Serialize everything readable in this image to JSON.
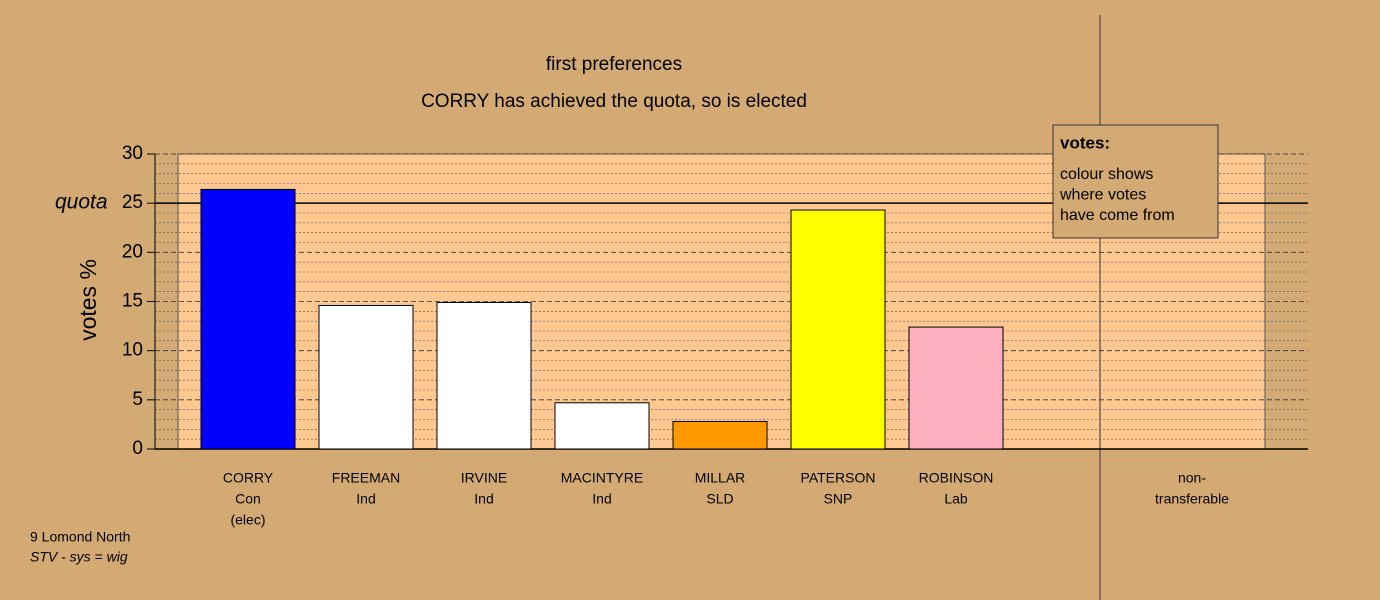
{
  "chart_data": {
    "type": "bar",
    "title": "first preferences",
    "subtitle": "CORRY has achieved the quota, so is elected",
    "y_label": "votes %",
    "categories": [
      [
        "CORRY",
        "Con",
        "(elec)"
      ],
      [
        "FREEMAN",
        "Ind"
      ],
      [
        "IRVINE",
        "Ind"
      ],
      [
        "MACINTYRE",
        "Ind"
      ],
      [
        "MILLAR",
        "SLD"
      ],
      [
        "PATERSON",
        "SNP"
      ],
      [
        "ROBINSON",
        "Lab"
      ],
      [
        "non-",
        "transferable"
      ]
    ],
    "values": [
      26.4,
      14.6,
      14.9,
      4.7,
      2.8,
      24.3,
      12.4,
      0
    ],
    "colors": [
      "#0000ff",
      "#ffffff",
      "#ffffff",
      "#ffffff",
      "#ff9900",
      "#ffff00",
      "#ffb0c0",
      "#ffffff"
    ],
    "ylim": [
      0,
      30
    ],
    "yticks": [
      0,
      5,
      10,
      15,
      20,
      25,
      30
    ],
    "minor_yticks": [
      1,
      2,
      3,
      4,
      6,
      7,
      8,
      9,
      11,
      12,
      13,
      14,
      16,
      17,
      18,
      19,
      21,
      22,
      23,
      24,
      26,
      27,
      28,
      29
    ],
    "quota": 25,
    "quota_label": "quota",
    "legend": {
      "title": "votes:",
      "lines": [
        "colour shows",
        "where votes",
        "have come from"
      ]
    },
    "footer": [
      "9 Lomond North",
      "STV - sys = wig"
    ]
  }
}
